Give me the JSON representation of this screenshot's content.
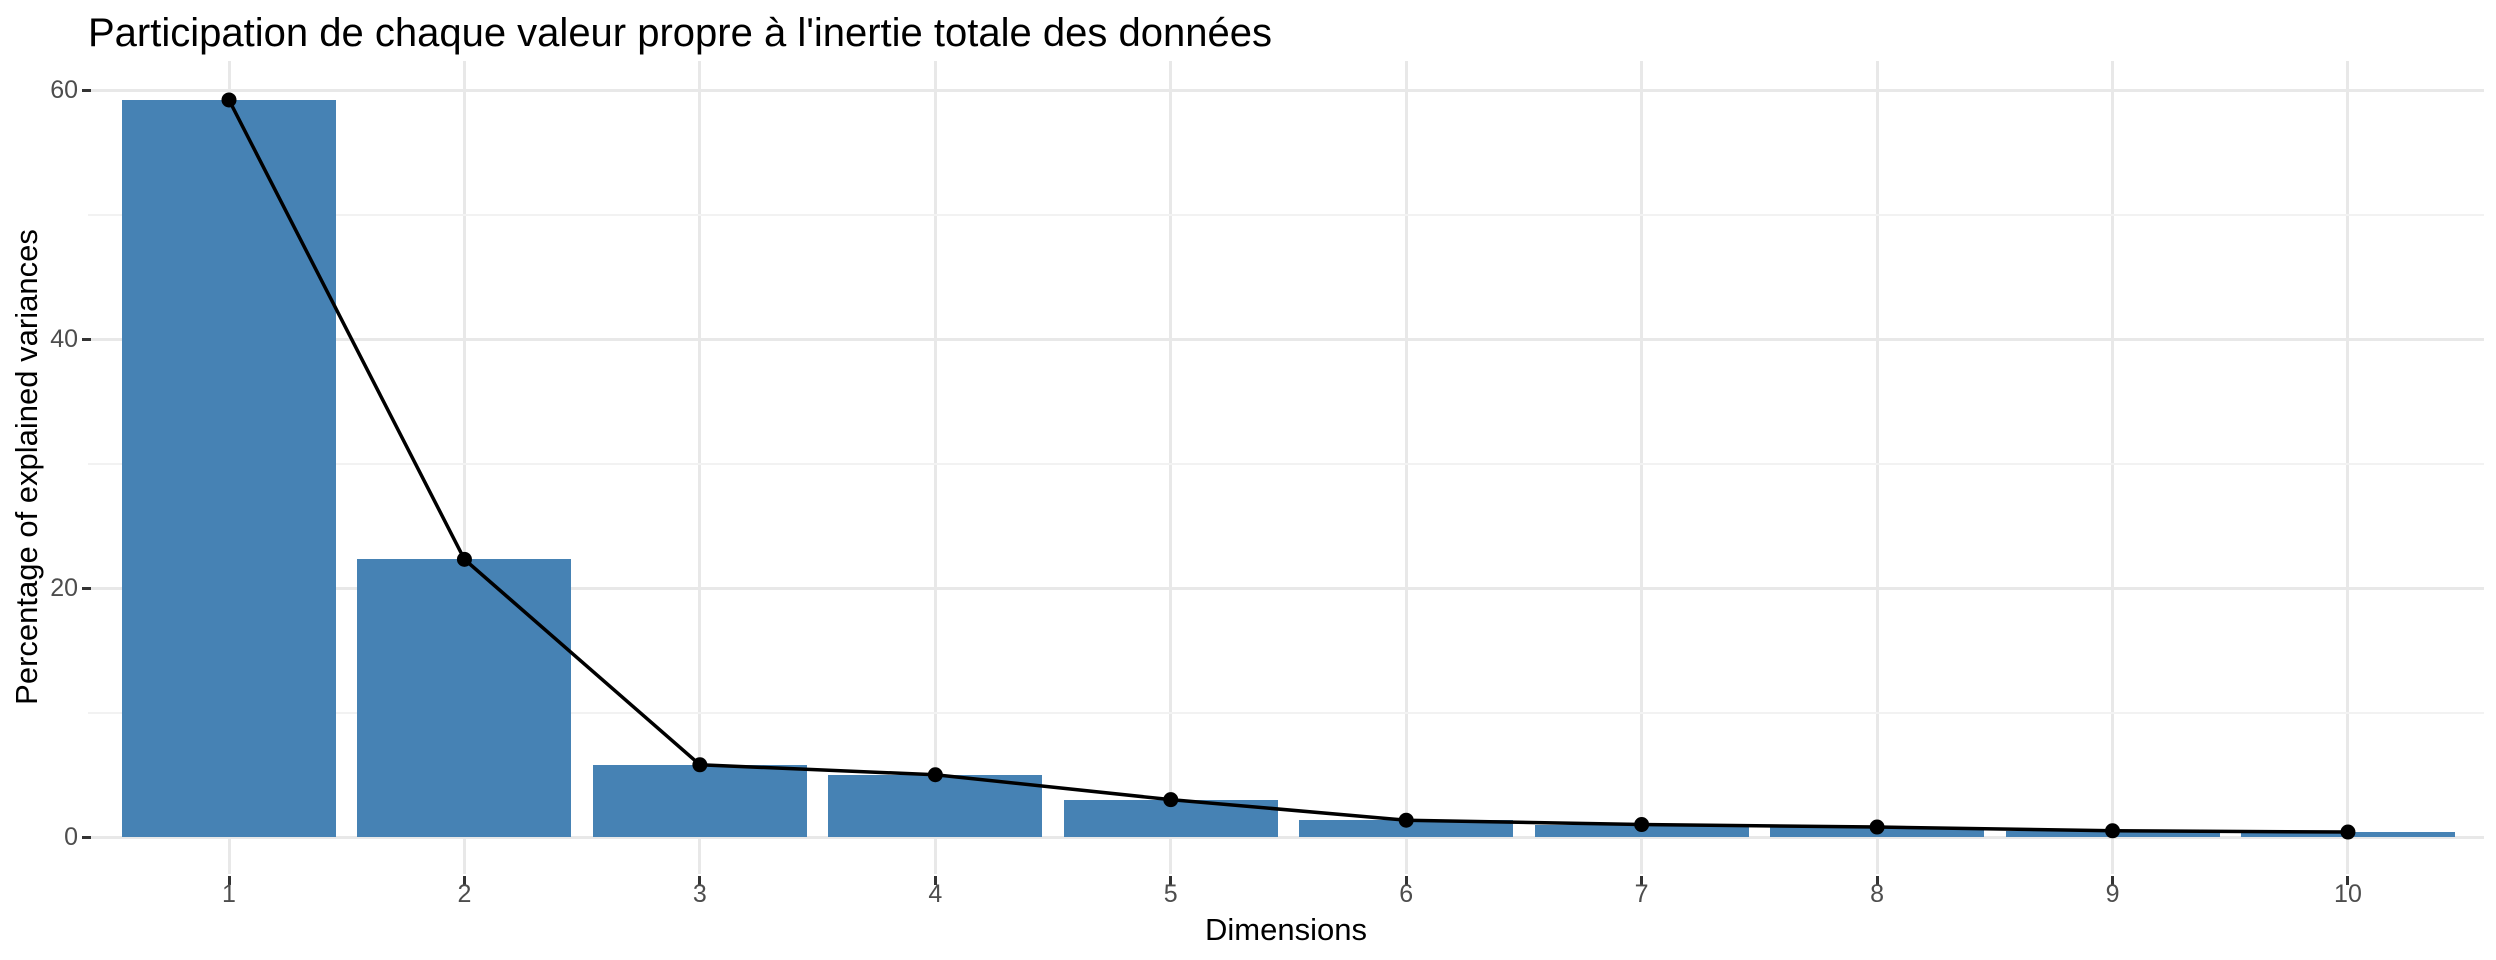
{
  "chart_data": {
    "type": "bar",
    "overlay": "line-with-points",
    "title": "Participation de chaque valeur propre à l'inertie totale des données",
    "xlabel": "Dimensions",
    "ylabel": "Percentage of explained variances",
    "categories": [
      "1",
      "2",
      "3",
      "4",
      "5",
      "6",
      "7",
      "8",
      "9",
      "10"
    ],
    "values": [
      59.2,
      22.3,
      5.8,
      5.0,
      3.0,
      1.35,
      1.0,
      0.8,
      0.5,
      0.4
    ],
    "yticks": [
      0,
      20,
      40,
      60
    ],
    "yticks_minor": [
      10,
      30,
      50
    ],
    "ylim": [
      -2.95,
      62.35
    ],
    "grid": "horizontal major+minor, vertical major at each category",
    "legend": "none",
    "colors": {
      "bar": "#4682B4",
      "line": "#000000",
      "point": "#000000",
      "grid_major": "#E8E8E8",
      "grid_minor": "#F2F2F2",
      "tick_label": "#4D4D4D",
      "tick_mark": "#333333",
      "title_text": "#000000",
      "background": "#FFFFFF"
    }
  }
}
